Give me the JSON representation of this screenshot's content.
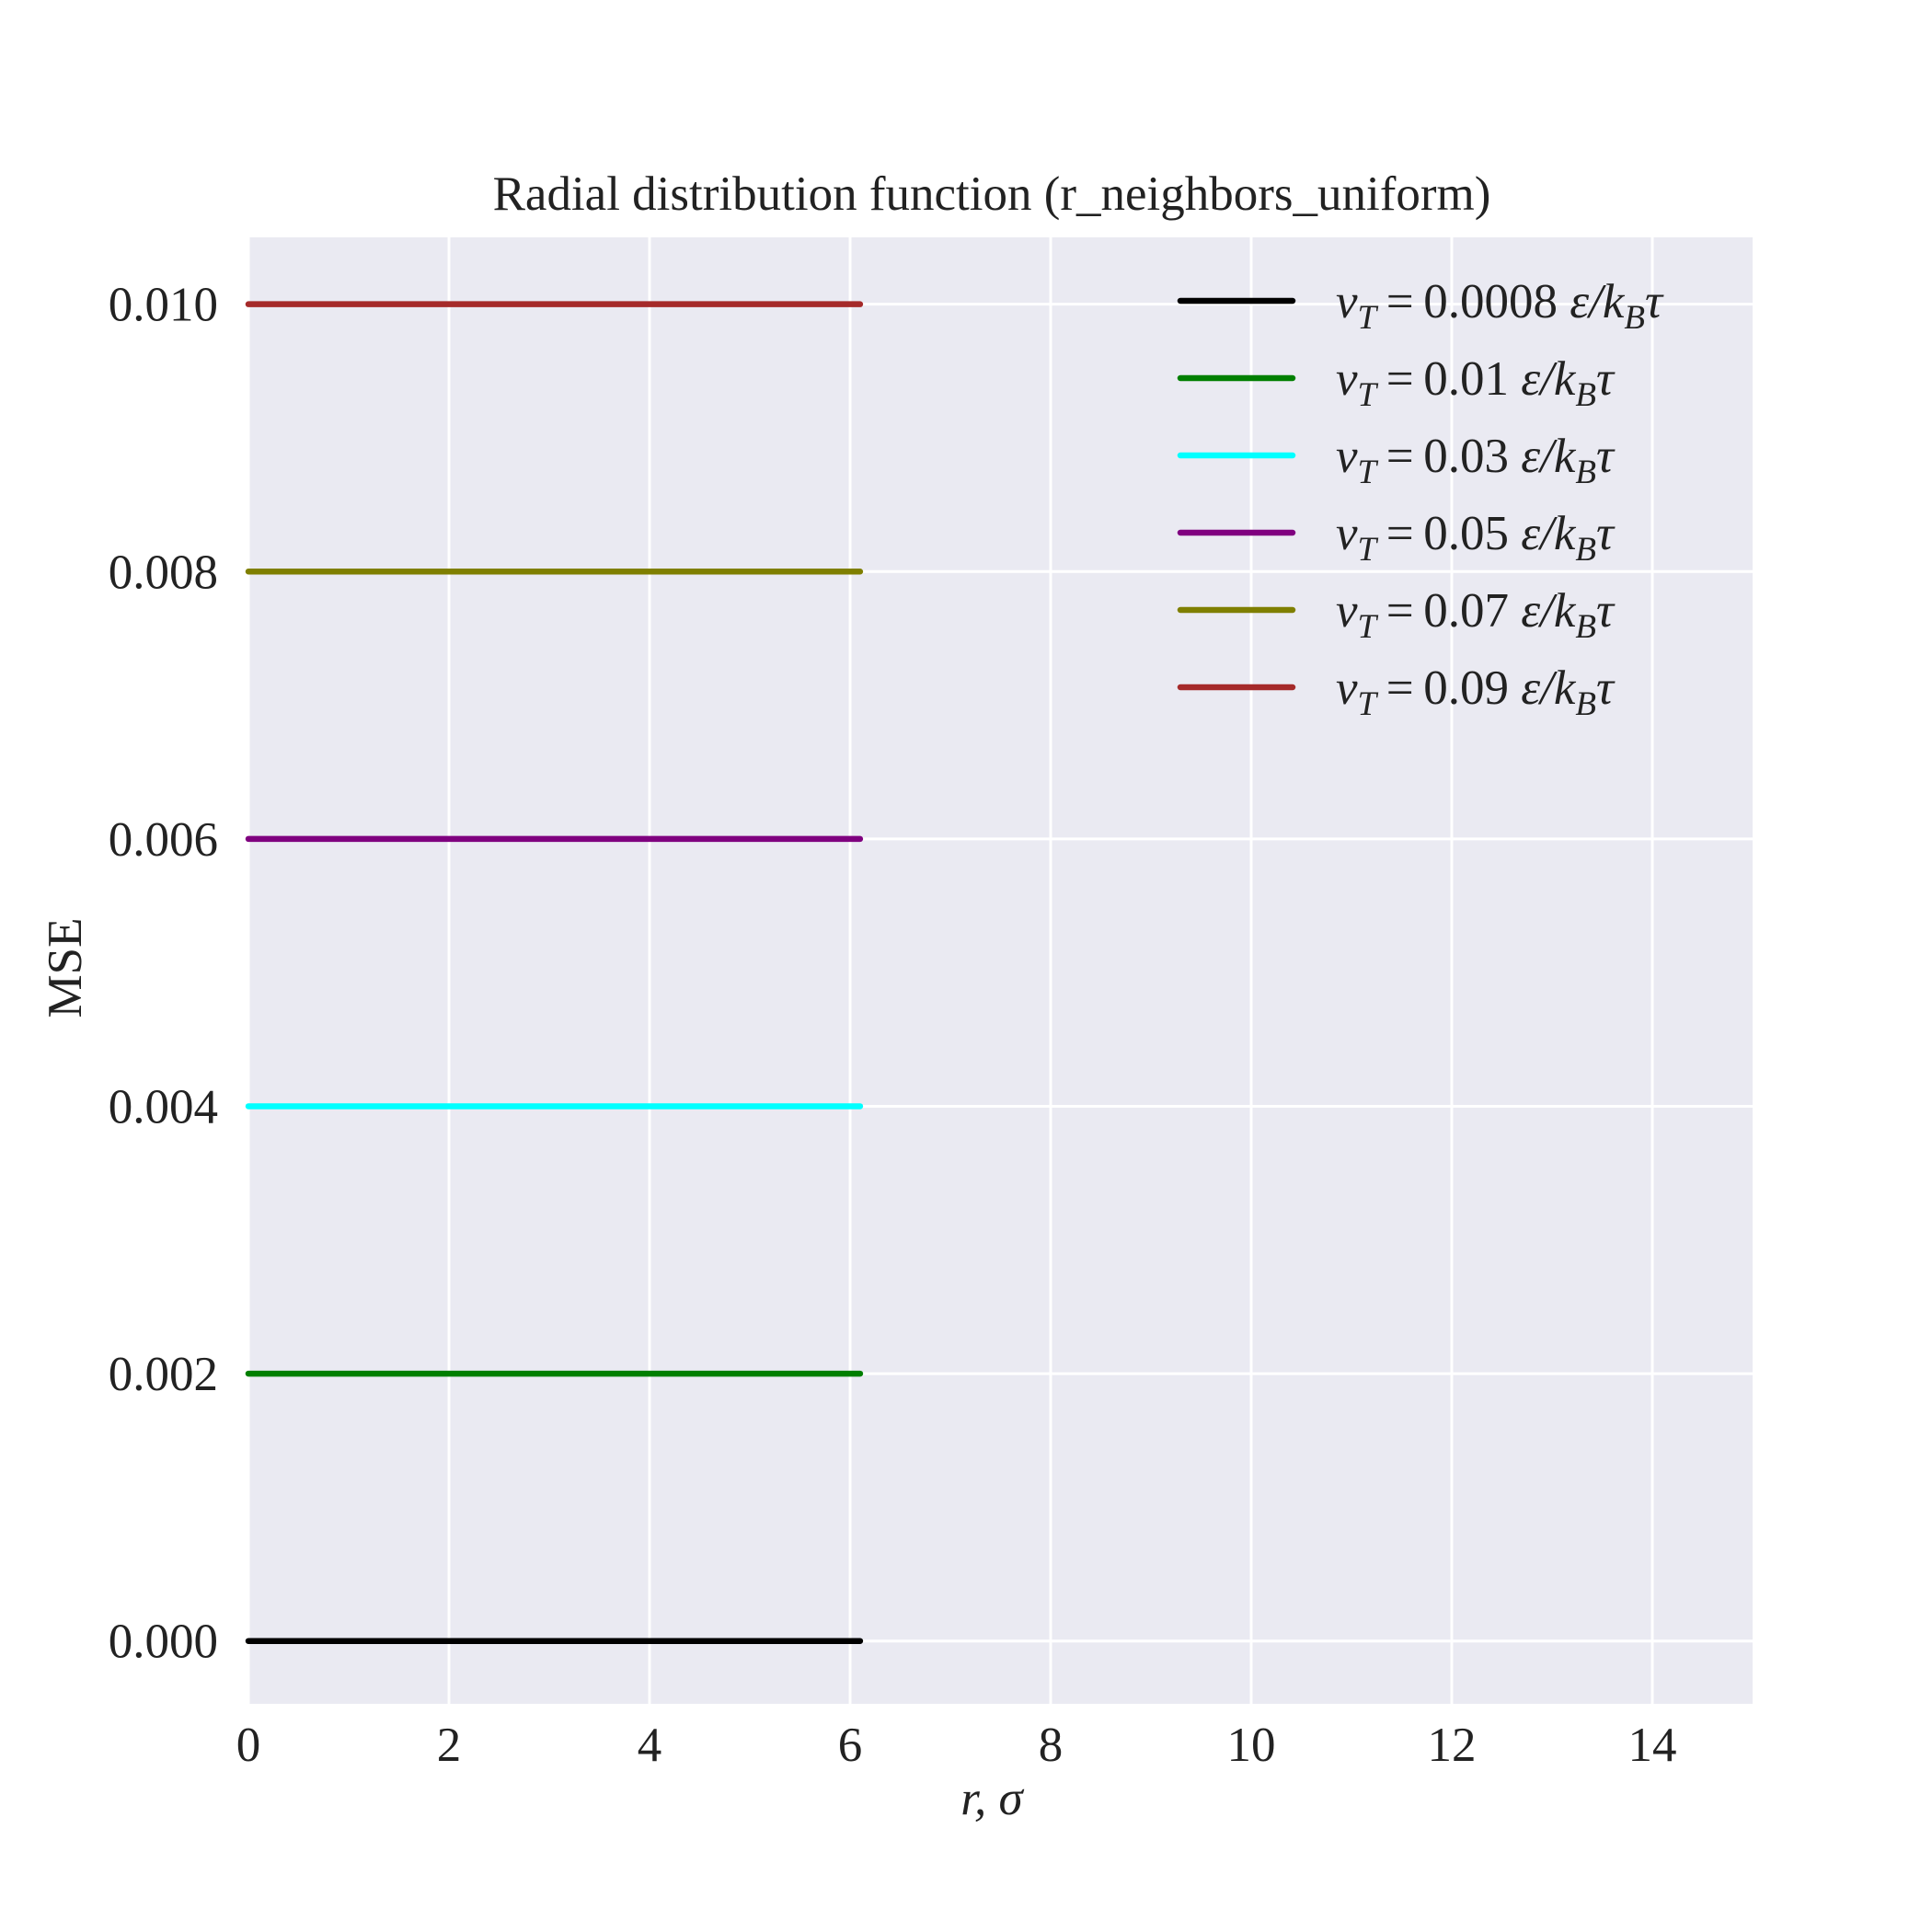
{
  "chart_data": {
    "type": "line",
    "title": "Radial distribution function (r_neighbors_uniform)",
    "xlabel": "r, σ",
    "ylabel": "MSE",
    "xlim": [
      0,
      15
    ],
    "ylim": [
      -0.00047,
      0.0105
    ],
    "xticks": [
      0,
      2,
      4,
      6,
      8,
      10,
      12,
      14
    ],
    "xtick_labels": [
      "0",
      "2",
      "4",
      "6",
      "8",
      "10",
      "12",
      "14"
    ],
    "yticks": [
      0.0,
      0.002,
      0.004,
      0.006,
      0.008,
      0.01
    ],
    "ytick_labels": [
      "0.000",
      "0.002",
      "0.004",
      "0.006",
      "0.008",
      "0.010"
    ],
    "grid": true,
    "legend_position": "top-right",
    "background": "#EAEAF2",
    "grid_color": "#FFFFFF",
    "x": [
      0,
      6.1
    ],
    "series": [
      {
        "name": "v_T = 0.0008 ε/k_Bτ",
        "value_text": "0.0008",
        "color": "#000000",
        "values": [
          0.0,
          0.0
        ]
      },
      {
        "name": "v_T = 0.01 ε/k_Bτ",
        "value_text": "0.01",
        "color": "#007F00",
        "values": [
          0.002,
          0.002
        ]
      },
      {
        "name": "v_T = 0.03 ε/k_Bτ",
        "value_text": "0.03",
        "color": "#00FFFF",
        "values": [
          0.004,
          0.004
        ]
      },
      {
        "name": "v_T = 0.05 ε/k_Bτ",
        "value_text": "0.05",
        "color": "#7F007F",
        "values": [
          0.006,
          0.006
        ]
      },
      {
        "name": "v_T = 0.07 ε/k_Bτ",
        "value_text": "0.07",
        "color": "#7F7F00",
        "values": [
          0.008,
          0.008
        ]
      },
      {
        "name": "v_T = 0.09 ε/k_Bτ",
        "value_text": "0.09",
        "color": "#A52A2A",
        "values": [
          0.01,
          0.01
        ]
      }
    ]
  }
}
